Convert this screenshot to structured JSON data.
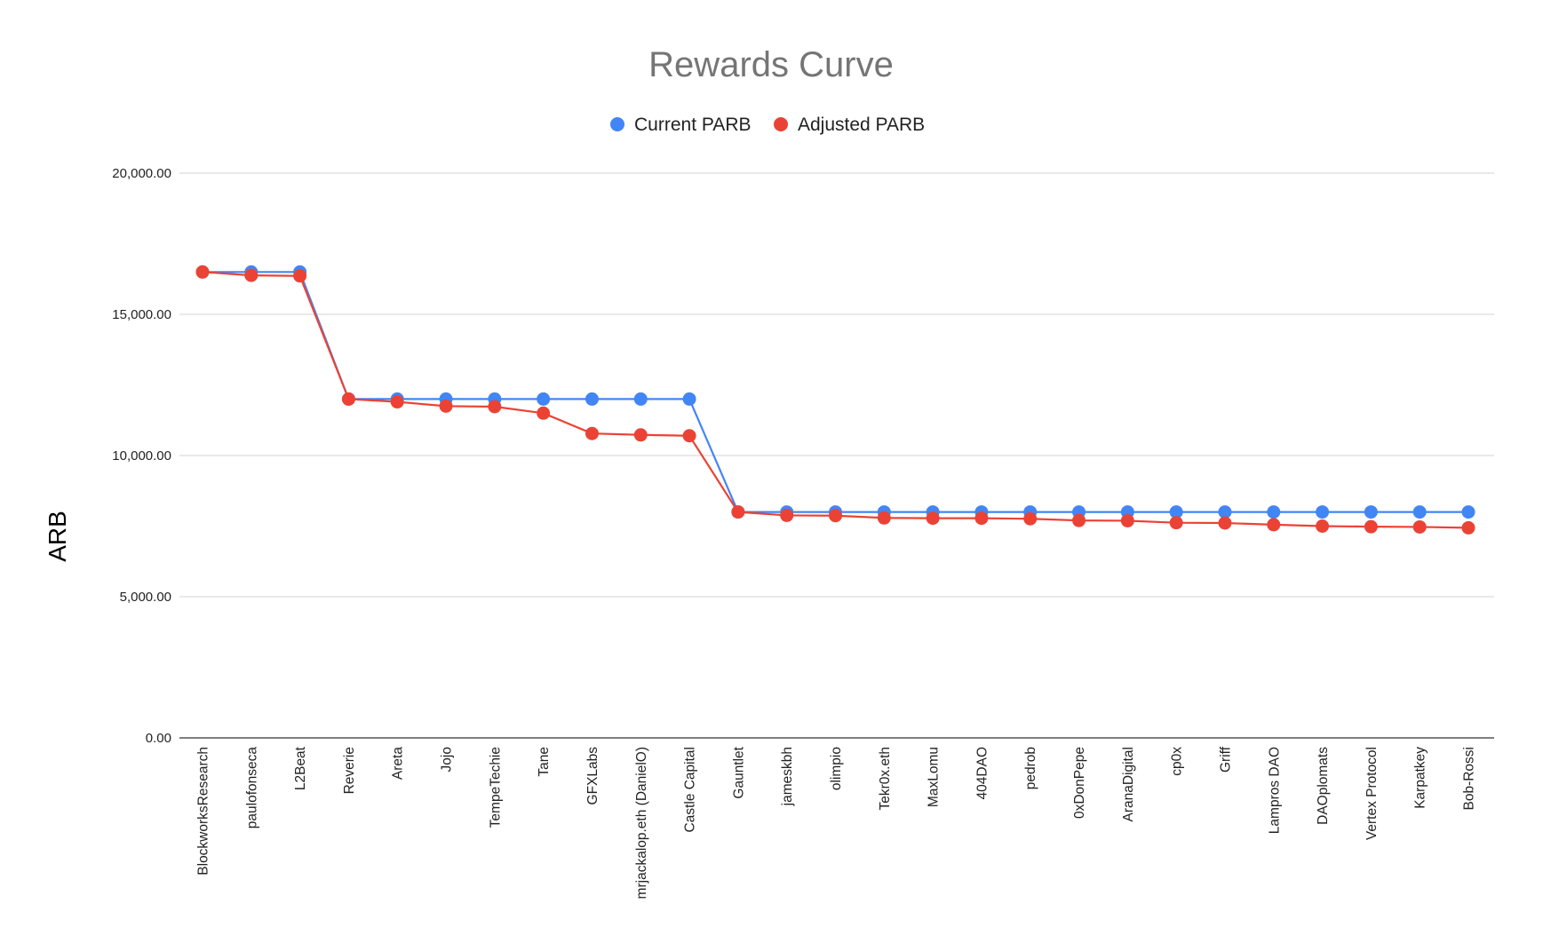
{
  "chart_data": {
    "type": "line",
    "title": "Rewards Curve",
    "xlabel": "",
    "ylabel": "ARB",
    "ylim": [
      0,
      20000
    ],
    "yticks": [
      "0.00",
      "5,000.00",
      "10,000.00",
      "15,000.00",
      "20,000.00"
    ],
    "grid": true,
    "legend_position": "top",
    "categories": [
      "BlockworksResearch",
      "paulofonseca",
      "L2Beat",
      "Reverie",
      "Areta",
      "Jojo",
      "TempeTechie",
      "Tane",
      "GFXLabs",
      "mrjackalop.eth (DanielO)",
      "Castle Capital",
      "Gauntlet",
      "jameskbh",
      "olimpio",
      "Tekr0x.eth",
      "MaxLomu",
      "404DAO",
      "pedrob",
      "0xDonPepe",
      "AranaDigital",
      "cp0x",
      "Griff",
      "Lampros DAO",
      "DAOplomats",
      "Vertex Protocol",
      "Karpatkey",
      "Bob-Rossi"
    ],
    "series": [
      {
        "name": "Current PARB",
        "color": "#4285f4",
        "values": [
          16500,
          16500,
          16500,
          12000,
          12000,
          12000,
          12000,
          12000,
          12000,
          12000,
          12000,
          8000,
          8000,
          8000,
          8000,
          8000,
          8000,
          8000,
          8000,
          8000,
          8000,
          8000,
          8000,
          8000,
          8000,
          8000,
          8000
        ]
      },
      {
        "name": "Adjusted PARB",
        "color": "#ea4335",
        "values": [
          16500,
          16380,
          16360,
          12000,
          11900,
          11750,
          11730,
          11500,
          10780,
          10730,
          10700,
          8000,
          7880,
          7870,
          7790,
          7780,
          7780,
          7760,
          7700,
          7690,
          7620,
          7610,
          7550,
          7500,
          7480,
          7470,
          7440
        ]
      }
    ]
  }
}
